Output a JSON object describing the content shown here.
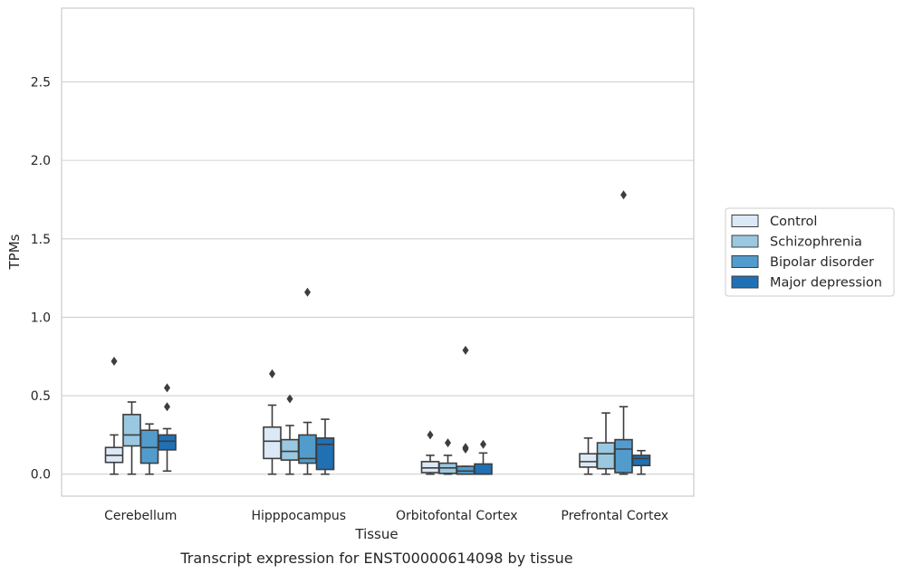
{
  "chart_data": {
    "type": "box",
    "title": "",
    "caption": "Transcript expression for ENST00000614098 by tissue",
    "xlabel": "Tissue",
    "ylabel": "TPMs",
    "ylim": [
      -0.14,
      2.97
    ],
    "yticks": [
      0.0,
      0.5,
      1.0,
      1.5,
      2.0,
      2.5
    ],
    "ytick_labels": [
      "0.0",
      "0.5",
      "1.0",
      "1.5",
      "2.0",
      "2.5"
    ],
    "grid": "horizontal",
    "legend_position": "right",
    "categories": [
      "Cerebellum",
      "Hipppocampus",
      "Orbitofontal Cortex",
      "Prefrontal Cortex"
    ],
    "series": [
      {
        "name": "Control",
        "color": "#dbe9f6",
        "boxes": [
          {
            "whislo": 0.0,
            "q1": 0.075,
            "med": 0.12,
            "q3": 0.17,
            "whishi": 0.25,
            "fliers": [
              0.72
            ]
          },
          {
            "whislo": 0.0,
            "q1": 0.1,
            "med": 0.21,
            "q3": 0.3,
            "whishi": 0.44,
            "fliers": [
              0.64
            ]
          },
          {
            "whislo": 0.0,
            "q1": 0.01,
            "med": 0.04,
            "q3": 0.08,
            "whishi": 0.12,
            "fliers": [
              0.25
            ]
          },
          {
            "whislo": 0.0,
            "q1": 0.045,
            "med": 0.08,
            "q3": 0.13,
            "whishi": 0.23,
            "fliers": []
          }
        ]
      },
      {
        "name": "Schizophrenia",
        "color": "#9ac8e0",
        "boxes": [
          {
            "whislo": 0.0,
            "q1": 0.18,
            "med": 0.25,
            "q3": 0.38,
            "whishi": 0.46,
            "fliers": []
          },
          {
            "whislo": 0.0,
            "q1": 0.09,
            "med": 0.145,
            "q3": 0.22,
            "whishi": 0.31,
            "fliers": [
              0.48
            ]
          },
          {
            "whislo": 0.0,
            "q1": 0.005,
            "med": 0.04,
            "q3": 0.07,
            "whishi": 0.12,
            "fliers": [
              0.2
            ]
          },
          {
            "whislo": 0.0,
            "q1": 0.035,
            "med": 0.13,
            "q3": 0.2,
            "whishi": 0.39,
            "fliers": []
          }
        ]
      },
      {
        "name": "Bipolar disorder",
        "color": "#519ccc",
        "boxes": [
          {
            "whislo": 0.0,
            "q1": 0.07,
            "med": 0.17,
            "q3": 0.28,
            "whishi": 0.32,
            "fliers": []
          },
          {
            "whislo": 0.0,
            "q1": 0.07,
            "med": 0.1,
            "q3": 0.25,
            "whishi": 0.33,
            "fliers": [
              1.16
            ]
          },
          {
            "whislo": 0.0,
            "q1": 0.0,
            "med": 0.02,
            "q3": 0.05,
            "whishi": 0.05,
            "fliers": [
              0.16,
              0.17,
              0.79
            ]
          },
          {
            "whislo": 0.0,
            "q1": 0.01,
            "med": 0.16,
            "q3": 0.22,
            "whishi": 0.43,
            "fliers": [
              1.78
            ]
          }
        ]
      },
      {
        "name": "Major depression",
        "color": "#2070b4",
        "boxes": [
          {
            "whislo": 0.02,
            "q1": 0.155,
            "med": 0.21,
            "q3": 0.25,
            "whishi": 0.29,
            "fliers": [
              0.43,
              0.55
            ]
          },
          {
            "whislo": 0.0,
            "q1": 0.03,
            "med": 0.19,
            "q3": 0.23,
            "whishi": 0.35,
            "fliers": []
          },
          {
            "whislo": 0.0,
            "q1": 0.0,
            "med": 0.0,
            "q3": 0.065,
            "whishi": 0.135,
            "fliers": [
              0.19
            ]
          },
          {
            "whislo": 0.0,
            "q1": 0.055,
            "med": 0.1,
            "q3": 0.12,
            "whishi": 0.15,
            "fliers": []
          }
        ]
      }
    ]
  }
}
